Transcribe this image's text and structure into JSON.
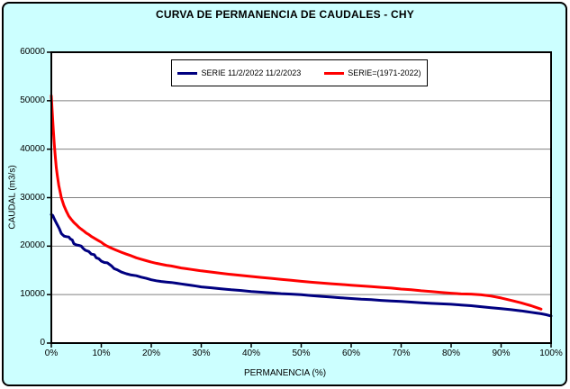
{
  "window": {
    "title": "CURVA DE PERMANENCIA DE CAUDALES - CHY"
  },
  "colors": {
    "background": "#CCFFFF",
    "plot_background": "#FFFFFF",
    "grid": "#808080",
    "axis": "#000000",
    "series_blue": "#000080",
    "series_red": "#FF0000"
  },
  "chart_data": {
    "type": "line",
    "title": "CURVA DE PERMANENCIA DE CAUDALES - CHY",
    "xlabel": "PERMANENCIA (%)",
    "ylabel": "CAUDAL (m3/s)",
    "xlim": [
      0,
      100
    ],
    "ylim": [
      0,
      60000
    ],
    "grid": "horizontal",
    "legend_position": "top-center-inside",
    "x_ticks": {
      "labels": [
        "0%",
        "10%",
        "20%",
        "30%",
        "40%",
        "50%",
        "60%",
        "70%",
        "80%",
        "90%",
        "100%"
      ],
      "values": [
        0,
        10,
        20,
        30,
        40,
        50,
        60,
        70,
        80,
        90,
        100
      ]
    },
    "y_ticks": {
      "labels": [
        "0",
        "10000",
        "20000",
        "30000",
        "40000",
        "50000",
        "60000"
      ],
      "values": [
        0,
        10000,
        20000,
        30000,
        40000,
        50000,
        60000
      ]
    },
    "series": [
      {
        "name": "SERIE 11/2/2022 11/2/2023",
        "color": "#000080",
        "points": [
          [
            0,
            26500
          ],
          [
            0.3,
            26300
          ],
          [
            0.5,
            25800
          ],
          [
            0.8,
            25200
          ],
          [
            1,
            24800
          ],
          [
            1.3,
            24200
          ],
          [
            1.6,
            23600
          ],
          [
            2,
            22600
          ],
          [
            2.3,
            22300
          ],
          [
            2.6,
            22050
          ],
          [
            3,
            21950
          ],
          [
            3.5,
            21880
          ],
          [
            3.8,
            21500
          ],
          [
            4.2,
            21250
          ],
          [
            4.5,
            20500
          ],
          [
            5,
            20250
          ],
          [
            5.5,
            20150
          ],
          [
            6,
            20000
          ],
          [
            6.3,
            19600
          ],
          [
            6.8,
            19150
          ],
          [
            7.5,
            18900
          ],
          [
            8,
            18350
          ],
          [
            8.6,
            18250
          ],
          [
            9,
            17600
          ],
          [
            9.5,
            17400
          ],
          [
            10,
            16900
          ],
          [
            10.6,
            16620
          ],
          [
            11.2,
            16550
          ],
          [
            12,
            15950
          ],
          [
            12.6,
            15350
          ],
          [
            13.2,
            15100
          ],
          [
            14,
            14650
          ],
          [
            15,
            14300
          ],
          [
            16,
            14050
          ],
          [
            17,
            13900
          ],
          [
            18,
            13600
          ],
          [
            19,
            13350
          ],
          [
            20,
            13050
          ],
          [
            21,
            12850
          ],
          [
            22,
            12700
          ],
          [
            23,
            12600
          ],
          [
            24,
            12500
          ],
          [
            25,
            12350
          ],
          [
            26,
            12200
          ],
          [
            27,
            12050
          ],
          [
            28,
            11900
          ],
          [
            29,
            11750
          ],
          [
            30,
            11600
          ],
          [
            32,
            11400
          ],
          [
            34,
            11200
          ],
          [
            36,
            11000
          ],
          [
            38,
            10850
          ],
          [
            40,
            10650
          ],
          [
            42,
            10500
          ],
          [
            44,
            10350
          ],
          [
            46,
            10200
          ],
          [
            48,
            10100
          ],
          [
            50,
            10000
          ],
          [
            52,
            9800
          ],
          [
            54,
            9650
          ],
          [
            56,
            9500
          ],
          [
            58,
            9350
          ],
          [
            60,
            9200
          ],
          [
            62,
            9050
          ],
          [
            64,
            8950
          ],
          [
            66,
            8800
          ],
          [
            68,
            8700
          ],
          [
            70,
            8600
          ],
          [
            72,
            8450
          ],
          [
            74,
            8300
          ],
          [
            76,
            8200
          ],
          [
            78,
            8100
          ],
          [
            80,
            8000
          ],
          [
            82,
            7850
          ],
          [
            84,
            7700
          ],
          [
            86,
            7500
          ],
          [
            88,
            7300
          ],
          [
            90,
            7100
          ],
          [
            92,
            6900
          ],
          [
            94,
            6650
          ],
          [
            95,
            6500
          ],
          [
            96,
            6350
          ],
          [
            97,
            6200
          ],
          [
            98,
            6050
          ],
          [
            99,
            5850
          ],
          [
            100,
            5600
          ]
        ]
      },
      {
        "name": "SERIE=(1971-2022)",
        "color": "#FF0000",
        "points": [
          [
            0,
            51000
          ],
          [
            0.2,
            47500
          ],
          [
            0.4,
            44000
          ],
          [
            0.6,
            41000
          ],
          [
            0.8,
            38500
          ],
          [
            1,
            36200
          ],
          [
            1.2,
            34500
          ],
          [
            1.5,
            32500
          ],
          [
            1.8,
            31000
          ],
          [
            2,
            30000
          ],
          [
            2.5,
            28400
          ],
          [
            3,
            27200
          ],
          [
            3.5,
            26200
          ],
          [
            4,
            25500
          ],
          [
            4.5,
            24900
          ],
          [
            5,
            24400
          ],
          [
            5.5,
            23900
          ],
          [
            6,
            23500
          ],
          [
            6.5,
            23100
          ],
          [
            7,
            22700
          ],
          [
            7.5,
            22400
          ],
          [
            8,
            22000
          ],
          [
            8.5,
            21700
          ],
          [
            9,
            21400
          ],
          [
            9.5,
            21100
          ],
          [
            10,
            20800
          ],
          [
            10.5,
            20400
          ],
          [
            11,
            20100
          ],
          [
            11.5,
            19850
          ],
          [
            12,
            19600
          ],
          [
            13,
            19150
          ],
          [
            14,
            18750
          ],
          [
            15,
            18350
          ],
          [
            16,
            18000
          ],
          [
            17,
            17600
          ],
          [
            18,
            17300
          ],
          [
            19,
            17000
          ],
          [
            20,
            16700
          ],
          [
            21,
            16450
          ],
          [
            22,
            16250
          ],
          [
            23,
            16050
          ],
          [
            24,
            15900
          ],
          [
            25,
            15700
          ],
          [
            26,
            15500
          ],
          [
            27,
            15350
          ],
          [
            28,
            15200
          ],
          [
            29,
            15050
          ],
          [
            30,
            14900
          ],
          [
            32,
            14650
          ],
          [
            34,
            14400
          ],
          [
            36,
            14150
          ],
          [
            38,
            13950
          ],
          [
            40,
            13750
          ],
          [
            42,
            13550
          ],
          [
            44,
            13350
          ],
          [
            46,
            13150
          ],
          [
            48,
            12950
          ],
          [
            50,
            12750
          ],
          [
            52,
            12550
          ],
          [
            54,
            12400
          ],
          [
            56,
            12250
          ],
          [
            58,
            12100
          ],
          [
            60,
            11950
          ],
          [
            62,
            11800
          ],
          [
            64,
            11650
          ],
          [
            66,
            11500
          ],
          [
            68,
            11350
          ],
          [
            70,
            11150
          ],
          [
            72,
            11000
          ],
          [
            74,
            10800
          ],
          [
            76,
            10650
          ],
          [
            78,
            10450
          ],
          [
            80,
            10300
          ],
          [
            82,
            10150
          ],
          [
            84,
            10100
          ],
          [
            86,
            9950
          ],
          [
            88,
            9700
          ],
          [
            90,
            9300
          ],
          [
            92,
            8800
          ],
          [
            94,
            8300
          ],
          [
            95,
            8000
          ],
          [
            96,
            7700
          ],
          [
            97,
            7350
          ],
          [
            98,
            7000
          ]
        ]
      }
    ]
  }
}
